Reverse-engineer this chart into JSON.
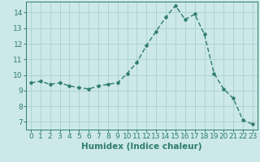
{
  "title": "",
  "xlabel": "Humidex (Indice chaleur)",
  "ylabel": "",
  "x_values": [
    0,
    1,
    2,
    3,
    4,
    5,
    6,
    7,
    8,
    9,
    10,
    11,
    12,
    13,
    14,
    15,
    16,
    17,
    18,
    19,
    20,
    21,
    22,
    23
  ],
  "y_values": [
    9.5,
    9.6,
    9.4,
    9.5,
    9.3,
    9.2,
    9.1,
    9.3,
    9.4,
    9.5,
    10.1,
    10.8,
    11.9,
    12.8,
    13.7,
    14.45,
    13.55,
    13.9,
    12.6,
    10.1,
    9.1,
    8.5,
    7.1,
    6.85
  ],
  "line_color": "#2e7d6e",
  "marker_color": "#2e7d6e",
  "bg_color": "#cce8e8",
  "grid_color": "#aacfcf",
  "ylim": [
    6.5,
    14.7
  ],
  "xlim": [
    -0.5,
    23.5
  ],
  "yticks": [
    7,
    8,
    9,
    10,
    11,
    12,
    13,
    14
  ],
  "xticks": [
    0,
    1,
    2,
    3,
    4,
    5,
    6,
    7,
    8,
    9,
    10,
    11,
    12,
    13,
    14,
    15,
    16,
    17,
    18,
    19,
    20,
    21,
    22,
    23
  ],
  "label_fontsize": 7.5,
  "tick_fontsize": 6.5
}
